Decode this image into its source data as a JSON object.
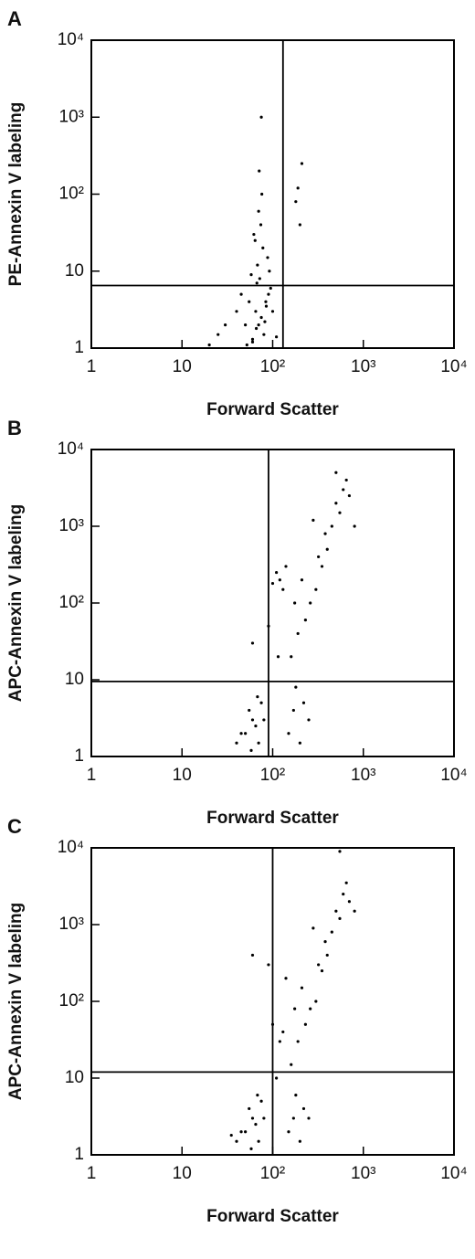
{
  "chart_data": [
    {
      "type": "scatter",
      "panel": "A",
      "xlabel": "Forward Scatter",
      "ylabel": "PE-Annexin V labeling",
      "xscale": "log",
      "yscale": "log",
      "xlim": [
        1,
        10000
      ],
      "ylim": [
        1,
        10000
      ],
      "xticks": [
        1,
        10,
        {
          "value": 100,
          "label": "10²"
        },
        {
          "value": 1000,
          "label": "10³"
        },
        {
          "value": 10000,
          "label": "10⁴"
        }
      ],
      "yticks": [
        1,
        10,
        {
          "value": 100,
          "label": "10²"
        },
        {
          "value": 1000,
          "label": "10³"
        },
        {
          "value": 10000,
          "label": "10⁴"
        }
      ],
      "gate": {
        "x": 130,
        "y": 6.5
      },
      "color": "#000000",
      "x": [
        70,
        65,
        80,
        55,
        75,
        90,
        60,
        85,
        72,
        68,
        50,
        95,
        78,
        62,
        88,
        74,
        66,
        82,
        58,
        100,
        45,
        110,
        70,
        76,
        64,
        84,
        52,
        92,
        71,
        67,
        40,
        30,
        25,
        20,
        200,
        190,
        210,
        180,
        75,
        60
      ],
      "values": [
        2,
        3,
        1.5,
        4,
        2.5,
        5,
        1.2,
        3.5,
        8,
        12,
        2,
        6,
        20,
        30,
        15,
        40,
        1.8,
        2.2,
        9,
        3,
        5,
        1.4,
        60,
        100,
        25,
        4,
        1.1,
        10,
        200,
        7,
        3,
        2,
        1.5,
        1.1,
        40,
        120,
        250,
        80,
        1000,
        1.3
      ]
    },
    {
      "type": "scatter",
      "panel": "B",
      "xlabel": "Forward Scatter",
      "ylabel": "APC-Annexin V labeling",
      "xscale": "log",
      "yscale": "log",
      "xlim": [
        1,
        10000
      ],
      "ylim": [
        1,
        10000
      ],
      "xticks": [
        1,
        10,
        {
          "value": 100,
          "label": "10²"
        },
        {
          "value": 1000,
          "label": "10³"
        },
        {
          "value": 10000,
          "label": "10⁴"
        }
      ],
      "yticks": [
        1,
        10,
        {
          "value": 100,
          "label": "10²"
        },
        {
          "value": 1000,
          "label": "10³"
        },
        {
          "value": 10000,
          "label": "10⁴"
        }
      ],
      "gate": {
        "x": 90,
        "y": 9.5
      },
      "color": "#000000",
      "x": [
        50,
        60,
        70,
        55,
        65,
        45,
        75,
        80,
        58,
        68,
        150,
        170,
        200,
        180,
        160,
        220,
        250,
        190,
        175,
        210,
        230,
        300,
        350,
        400,
        450,
        500,
        550,
        600,
        650,
        700,
        380,
        320,
        280,
        260,
        120,
        110,
        130,
        100,
        140,
        115,
        90,
        60,
        40,
        800,
        500
      ],
      "values": [
        2,
        3,
        1.5,
        4,
        2.5,
        2,
        5,
        3,
        1.2,
        6,
        2,
        4,
        1.5,
        8,
        20,
        5,
        3,
        40,
        100,
        200,
        60,
        150,
        300,
        500,
        1000,
        2000,
        1500,
        3000,
        4000,
        2500,
        800,
        400,
        1200,
        100,
        200,
        250,
        150,
        180,
        300,
        20,
        50,
        30,
        1.5,
        1000,
        5000
      ]
    },
    {
      "type": "scatter",
      "panel": "C",
      "xlabel": "Forward Scatter",
      "ylabel": "APC-Annexin V labeling",
      "xscale": "log",
      "yscale": "log",
      "xlim": [
        1,
        10000
      ],
      "ylim": [
        1,
        10000
      ],
      "xticks": [
        1,
        10,
        {
          "value": 100,
          "label": "10²"
        },
        {
          "value": 1000,
          "label": "10³"
        },
        {
          "value": 10000,
          "label": "10⁴"
        }
      ],
      "yticks": [
        1,
        10,
        {
          "value": 100,
          "label": "10²"
        },
        {
          "value": 1000,
          "label": "10³"
        },
        {
          "value": 10000,
          "label": "10⁴"
        }
      ],
      "gate": {
        "x": 100,
        "y": 12
      },
      "color": "#000000",
      "x": [
        50,
        60,
        70,
        55,
        65,
        45,
        75,
        80,
        58,
        68,
        150,
        170,
        200,
        180,
        160,
        220,
        250,
        190,
        175,
        210,
        230,
        300,
        350,
        400,
        450,
        500,
        550,
        600,
        650,
        700,
        380,
        320,
        280,
        260,
        120,
        110,
        130,
        100,
        140,
        90,
        60,
        40,
        800,
        550,
        35
      ],
      "values": [
        2,
        3,
        1.5,
        4,
        2.5,
        2,
        5,
        3,
        1.2,
        6,
        2,
        3,
        1.5,
        6,
        15,
        4,
        3,
        30,
        80,
        150,
        50,
        100,
        250,
        400,
        800,
        1500,
        1200,
        2500,
        3500,
        2000,
        600,
        300,
        900,
        80,
        30,
        10,
        40,
        50,
        200,
        300,
        400,
        1.5,
        1500,
        9000,
        1.8
      ]
    }
  ]
}
